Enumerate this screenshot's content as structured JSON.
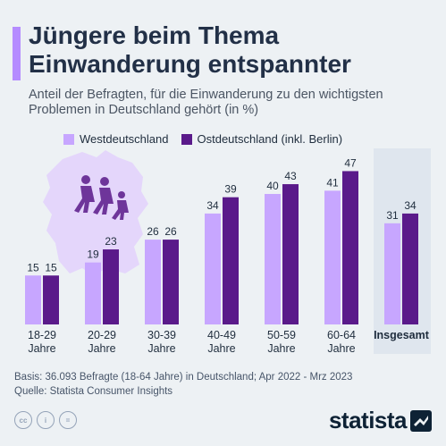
{
  "title_line1": "Jüngere beim Thema",
  "title_line2": "Einwanderung entspannter",
  "subtitle": "Anteil der Befragten, für die Einwanderung zu den wichtigsten Problemen in Deutschland gehört (in %)",
  "source_basis": "Basis: 36.093 Befragte (18-64 Jahre) in Deutschland; Apr 2022 - Mrz 2023",
  "source_quelle": "Quelle: Statista Consumer Insights",
  "brand": "statista",
  "colors": {
    "west": "#c7a6ff",
    "ost": "#5a1a8a",
    "background": "#edf1f4",
    "highlight": "#dfe6ee",
    "accent": "#b58cff"
  },
  "icons": [
    "cc-icon",
    "by-icon",
    "nd-icon",
    "statista-logo-icon"
  ],
  "chart_data": {
    "type": "bar",
    "categories": [
      [
        "18-29",
        "Jahre"
      ],
      [
        "20-29",
        "Jahre"
      ],
      [
        "30-39",
        "Jahre"
      ],
      [
        "40-49",
        "Jahre"
      ],
      [
        "50-59",
        "Jahre"
      ],
      [
        "60-64",
        "Jahre"
      ],
      [
        "Insgesamt"
      ]
    ],
    "series": [
      {
        "name": "Westdeutschland",
        "values": [
          15,
          19,
          26,
          34,
          40,
          41,
          31
        ]
      },
      {
        "name": "Ostdeutschland (inkl. Berlin)",
        "values": [
          15,
          23,
          26,
          39,
          43,
          47,
          34
        ]
      }
    ],
    "highlighted_category": "Insgesamt",
    "ylim": [
      0,
      50
    ],
    "legend_position": "top",
    "grid": false
  }
}
